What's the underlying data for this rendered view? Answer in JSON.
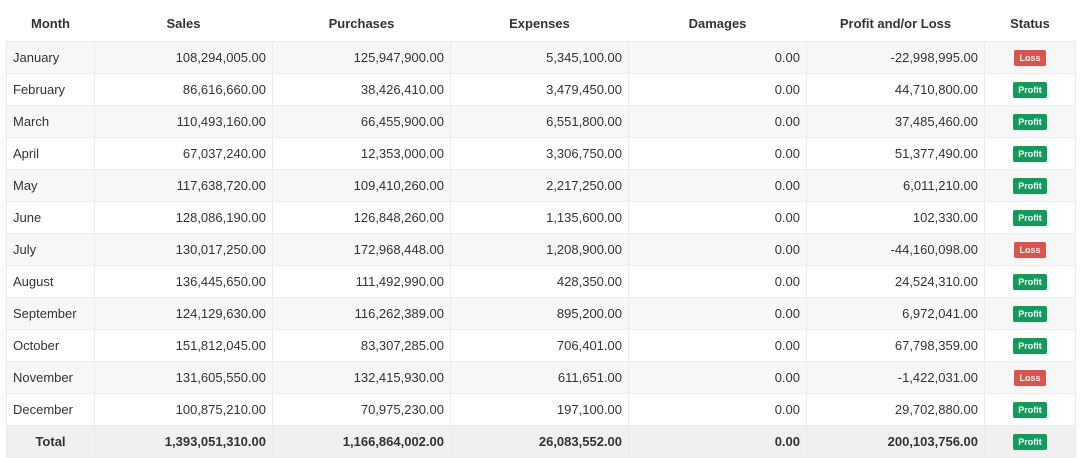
{
  "table": {
    "headers": [
      "Month",
      "Sales",
      "Purchases",
      "Expenses",
      "Damages",
      "Profit and/or Loss",
      "Status"
    ],
    "rows": [
      {
        "month": "January",
        "sales": "108,294,005.00",
        "purchases": "125,947,900.00",
        "expenses": "5,345,100.00",
        "damages": "0.00",
        "profit_loss": "-22,998,995.00",
        "status": "Loss"
      },
      {
        "month": "February",
        "sales": "86,616,660.00",
        "purchases": "38,426,410.00",
        "expenses": "3,479,450.00",
        "damages": "0.00",
        "profit_loss": "44,710,800.00",
        "status": "Profit"
      },
      {
        "month": "March",
        "sales": "110,493,160.00",
        "purchases": "66,455,900.00",
        "expenses": "6,551,800.00",
        "damages": "0.00",
        "profit_loss": "37,485,460.00",
        "status": "Profit"
      },
      {
        "month": "April",
        "sales": "67,037,240.00",
        "purchases": "12,353,000.00",
        "expenses": "3,306,750.00",
        "damages": "0.00",
        "profit_loss": "51,377,490.00",
        "status": "Profit"
      },
      {
        "month": "May",
        "sales": "117,638,720.00",
        "purchases": "109,410,260.00",
        "expenses": "2,217,250.00",
        "damages": "0.00",
        "profit_loss": "6,011,210.00",
        "status": "Profit"
      },
      {
        "month": "June",
        "sales": "128,086,190.00",
        "purchases": "126,848,260.00",
        "expenses": "1,135,600.00",
        "damages": "0.00",
        "profit_loss": "102,330.00",
        "status": "Profit"
      },
      {
        "month": "July",
        "sales": "130,017,250.00",
        "purchases": "172,968,448.00",
        "expenses": "1,208,900.00",
        "damages": "0.00",
        "profit_loss": "-44,160,098.00",
        "status": "Loss"
      },
      {
        "month": "August",
        "sales": "136,445,650.00",
        "purchases": "111,492,990.00",
        "expenses": "428,350.00",
        "damages": "0.00",
        "profit_loss": "24,524,310.00",
        "status": "Profit"
      },
      {
        "month": "September",
        "sales": "124,129,630.00",
        "purchases": "116,262,389.00",
        "expenses": "895,200.00",
        "damages": "0.00",
        "profit_loss": "6,972,041.00",
        "status": "Profit"
      },
      {
        "month": "October",
        "sales": "151,812,045.00",
        "purchases": "83,307,285.00",
        "expenses": "706,401.00",
        "damages": "0.00",
        "profit_loss": "67,798,359.00",
        "status": "Profit"
      },
      {
        "month": "November",
        "sales": "131,605,550.00",
        "purchases": "132,415,930.00",
        "expenses": "611,651.00",
        "damages": "0.00",
        "profit_loss": "-1,422,031.00",
        "status": "Loss"
      },
      {
        "month": "December",
        "sales": "100,875,210.00",
        "purchases": "70,975,230.00",
        "expenses": "197,100.00",
        "damages": "0.00",
        "profit_loss": "29,702,880.00",
        "status": "Profit"
      }
    ],
    "total": {
      "label": "Total",
      "sales": "1,393,051,310.00",
      "purchases": "1,166,864,002.00",
      "expenses": "26,083,552.00",
      "damages": "0.00",
      "profit_loss": "200,103,756.00",
      "status": "Profit"
    }
  },
  "colors": {
    "profit_badge": "#0f9d58",
    "loss_badge": "#d9534f"
  }
}
